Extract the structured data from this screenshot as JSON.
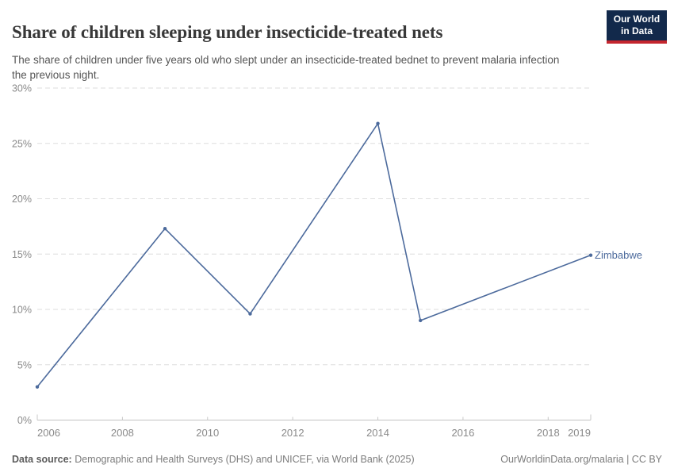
{
  "header": {
    "title": "Share of children sleeping under insecticide-treated nets",
    "subtitle": "The share of children under five years old who slept under an insecticide-treated bednet to prevent malaria infection the previous night.",
    "logo": {
      "line1": "Our World",
      "line2": "in Data",
      "bg_color": "#12294B",
      "accent_color": "#C4262E"
    }
  },
  "chart_data": {
    "type": "line",
    "title": "Share of children sleeping under insecticide-treated nets",
    "xlabel": "",
    "ylabel": "",
    "x": [
      2006,
      2009,
      2011,
      2014,
      2015,
      2019
    ],
    "series": [
      {
        "name": "Zimbabwe",
        "color": "#4C6A9C",
        "values": [
          3,
          17.3,
          9.6,
          26.8,
          9,
          14.9
        ]
      }
    ],
    "xlim": [
      2006,
      2019
    ],
    "ylim": [
      0,
      30
    ],
    "xticks": [
      2006,
      2008,
      2010,
      2012,
      2014,
      2016,
      2018,
      2019
    ],
    "yticks": [
      0,
      5,
      10,
      15,
      20,
      25,
      30
    ],
    "ytick_suffix": "%",
    "grid": "horizontal-dashed",
    "legend": "line-end-label"
  },
  "footer": {
    "source_label": "Data source:",
    "source_text": " Demographic and Health Surveys (DHS) and UNICEF, via World Bank (2025)",
    "credit": "OurWorldinData.org/malaria | CC BY"
  }
}
